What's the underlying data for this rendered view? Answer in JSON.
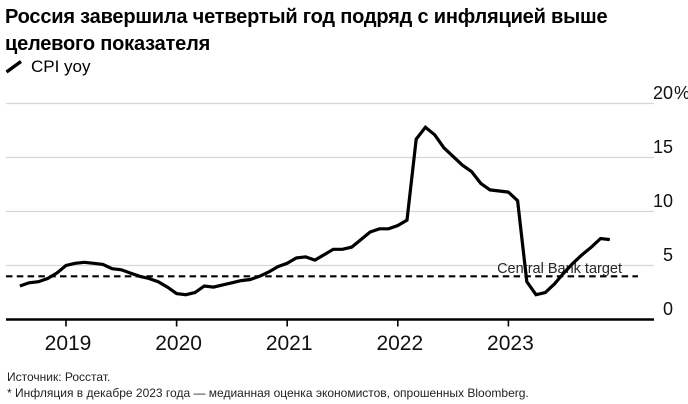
{
  "header": {
    "title_line1": "Россия завершила четвертый год подряд с инфляцией выше",
    "title_line2": "целевого показателя",
    "legend_label": "CPI yoy"
  },
  "chart_data": {
    "type": "line",
    "title": "Россия завершила четвертый год подряд с инфляцией выше целевого показателя",
    "series": [
      {
        "name": "CPI yoy",
        "start": "2018-08",
        "frequency": "monthly",
        "color": "#000000",
        "values": [
          3.1,
          3.4,
          3.5,
          3.8,
          4.3,
          5.0,
          5.2,
          5.3,
          5.2,
          5.1,
          4.7,
          4.6,
          4.3,
          4.0,
          3.8,
          3.5,
          3.0,
          2.4,
          2.3,
          2.5,
          3.1,
          3.0,
          3.2,
          3.4,
          3.6,
          3.7,
          4.0,
          4.4,
          4.9,
          5.2,
          5.7,
          5.8,
          5.5,
          6.0,
          6.5,
          6.5,
          6.7,
          7.4,
          8.1,
          8.4,
          8.4,
          8.7,
          9.2,
          16.7,
          17.8,
          17.1,
          15.9,
          15.1,
          14.3,
          13.7,
          12.6,
          12.0,
          11.9,
          11.8,
          11.0,
          3.5,
          2.3,
          2.5,
          3.3,
          4.3,
          5.2,
          6.0,
          6.7,
          7.5,
          7.4
        ]
      }
    ],
    "x_tick_labels": [
      "2019",
      "2020",
      "2021",
      "2022",
      "2023"
    ],
    "y_ticks": [
      {
        "v": 0,
        "label": "0"
      },
      {
        "v": 5,
        "label": "5"
      },
      {
        "v": 10,
        "label": "10"
      },
      {
        "v": 15,
        "label": "15"
      },
      {
        "v": 20,
        "label": "20",
        "suffix": "%"
      }
    ],
    "ylim": [
      0,
      20
    ],
    "grid": true,
    "legend_position": "top-left",
    "reference_line": {
      "value": 4,
      "label": "Central Bank target",
      "style": "dashed",
      "color": "#000000"
    },
    "colors": {
      "grid": "#d7d7d7",
      "axis": "#000000",
      "line": "#000000",
      "label": "#111111",
      "reference_label": "#262626"
    }
  },
  "footer": {
    "source": "Источник: Росстат.",
    "footnote": "* Инфляция в декабре 2023 года — медианная оценка экономистов, опрошенных Bloomberg."
  }
}
